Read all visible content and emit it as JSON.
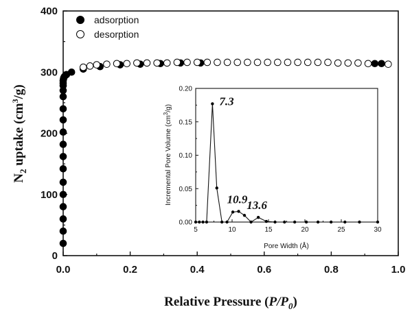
{
  "chart_data": [
    {
      "type": "scatter",
      "name": "isotherm",
      "title": "",
      "xlabel_main": "Relative Pressure (",
      "xlabel_var": "P/P",
      "xlabel_sub": "0",
      "xlabel_close": ")",
      "ylabel_n": "N",
      "ylabel_sub": "2",
      "ylabel_mid": " uptake (cm",
      "ylabel_sup": "3",
      "ylabel_end": "/g)",
      "xlim": [
        0,
        1.0
      ],
      "ylim": [
        0,
        400
      ],
      "x_ticks": [
        "0.0",
        "0.2",
        "0.4",
        "0.6",
        "0.8",
        "1.0"
      ],
      "y_ticks": [
        "0",
        "100",
        "200",
        "300",
        "400"
      ],
      "legend": [
        "adsorption",
        "desorption"
      ],
      "series": [
        {
          "name": "adsorption",
          "marker": "filled-circle",
          "x": [
            0.0,
            0.0,
            0.0,
            0.0,
            0.0,
            0.0,
            0.0,
            0.0,
            0.0,
            0.0,
            0.0,
            0.0,
            0.0,
            0.0,
            0.0,
            0.0,
            0.0,
            0.001,
            0.002,
            0.004,
            0.01,
            0.025,
            0.06,
            0.11,
            0.17,
            0.23,
            0.29,
            0.35,
            0.41,
            0.93,
            0.95
          ],
          "y": [
            20,
            40,
            60,
            80,
            100,
            120,
            142,
            162,
            182,
            202,
            222,
            240,
            260,
            270,
            278,
            282,
            286,
            289,
            291,
            293,
            296,
            300,
            305,
            309,
            312,
            313,
            314,
            315,
            315,
            314,
            314
          ]
        },
        {
          "name": "desorption",
          "marker": "open-circle",
          "x": [
            0.97,
            0.91,
            0.88,
            0.85,
            0.82,
            0.79,
            0.76,
            0.73,
            0.7,
            0.67,
            0.64,
            0.61,
            0.58,
            0.55,
            0.52,
            0.49,
            0.46,
            0.43,
            0.4,
            0.37,
            0.34,
            0.31,
            0.28,
            0.25,
            0.22,
            0.19,
            0.16,
            0.13,
            0.1,
            0.08,
            0.06
          ],
          "y": [
            313,
            314,
            315,
            315,
            315,
            316,
            316,
            316,
            316,
            316,
            316,
            316,
            316,
            316,
            316,
            316,
            316,
            316,
            316,
            316,
            316,
            315,
            315,
            315,
            315,
            314,
            314,
            313,
            312,
            310,
            308
          ]
        }
      ]
    },
    {
      "type": "line",
      "name": "pore-size-inset",
      "xlabel": "Pore Width (Å)",
      "ylabel": "Incremental Pore Volume (cm³/g)",
      "ylabel_base": "Incremental Pore Volume (cm",
      "ylabel_sup": "3",
      "ylabel_end": "/g)",
      "xlim": [
        5,
        30
      ],
      "ylim": [
        0,
        0.2
      ],
      "x_ticks": [
        "5",
        "10",
        "15",
        "20",
        "25",
        "30"
      ],
      "y_ticks": [
        "0.00",
        "0.05",
        "0.10",
        "0.15",
        "0.20"
      ],
      "x": [
        5.0,
        5.5,
        6.0,
        6.5,
        7.3,
        7.9,
        8.6,
        9.3,
        10.1,
        10.9,
        11.7,
        12.6,
        13.6,
        14.7,
        15.9,
        17.2,
        18.6,
        20.2,
        21.8,
        23.6,
        25.5,
        27.5,
        30.0
      ],
      "y": [
        0.0,
        0.0,
        0.0,
        0.0,
        0.177,
        0.051,
        0.0,
        0.0,
        0.015,
        0.016,
        0.01,
        0.0,
        0.007,
        0.001,
        0.0,
        0.0,
        0.0,
        0.0,
        0.0,
        0.0,
        0.0,
        0.0,
        0.0
      ],
      "annotations": [
        {
          "text": "7.3",
          "x": 7.3,
          "y": 0.177
        },
        {
          "text": "10.9",
          "x": 10.9,
          "y": 0.016
        },
        {
          "text": "13.6",
          "x": 13.6,
          "y": 0.007
        }
      ]
    }
  ]
}
